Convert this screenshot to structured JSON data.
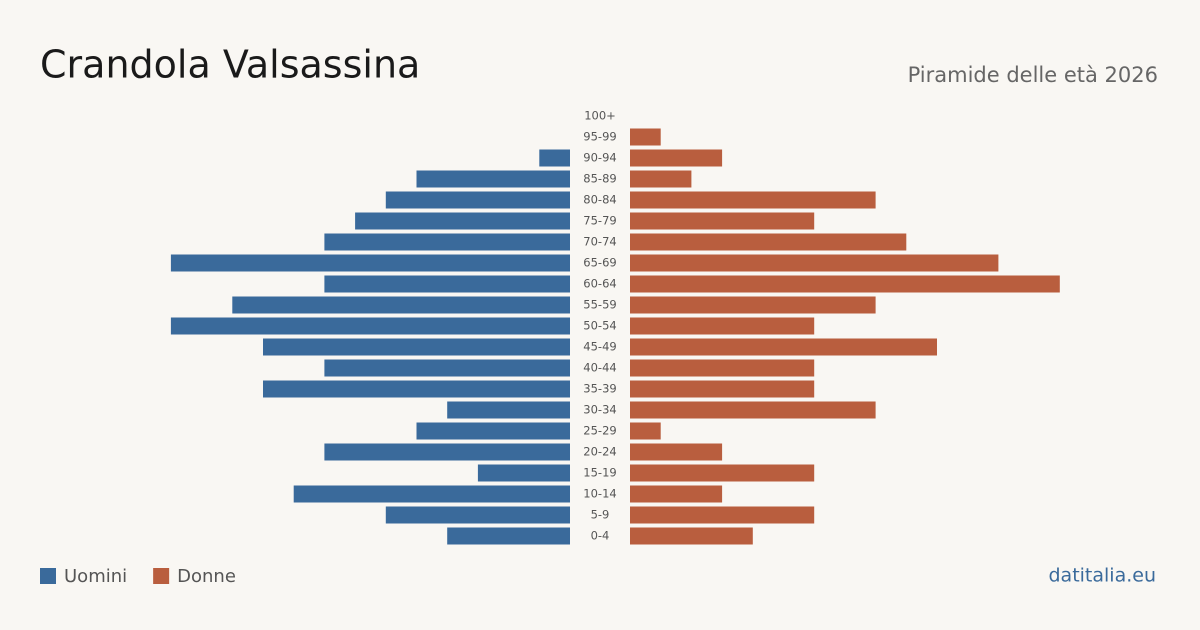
{
  "chart_data": {
    "type": "pyramid",
    "title": "Crandola Valsassina",
    "subtitle": "Piramide delle età 2026",
    "source": "datitalia.eu",
    "categories": [
      "100+",
      "95-99",
      "90-94",
      "85-89",
      "80-84",
      "75-79",
      "70-74",
      "65-69",
      "60-64",
      "55-59",
      "50-54",
      "45-49",
      "40-44",
      "35-39",
      "30-34",
      "25-29",
      "20-24",
      "15-19",
      "10-14",
      "5-9",
      "0-4"
    ],
    "series": [
      {
        "name": "Uomini",
        "color": "#3a6a9b",
        "values": [
          0,
          0,
          1,
          5,
          6,
          7,
          8,
          13,
          8,
          11,
          13,
          10,
          8,
          10,
          4,
          5,
          8,
          3,
          9,
          6,
          4
        ]
      },
      {
        "name": "Donne",
        "color": "#b95e3e",
        "values": [
          0,
          1,
          3,
          2,
          8,
          6,
          9,
          12,
          14,
          8,
          6,
          10,
          6,
          6,
          8,
          1,
          3,
          6,
          3,
          6,
          4
        ]
      }
    ]
  }
}
